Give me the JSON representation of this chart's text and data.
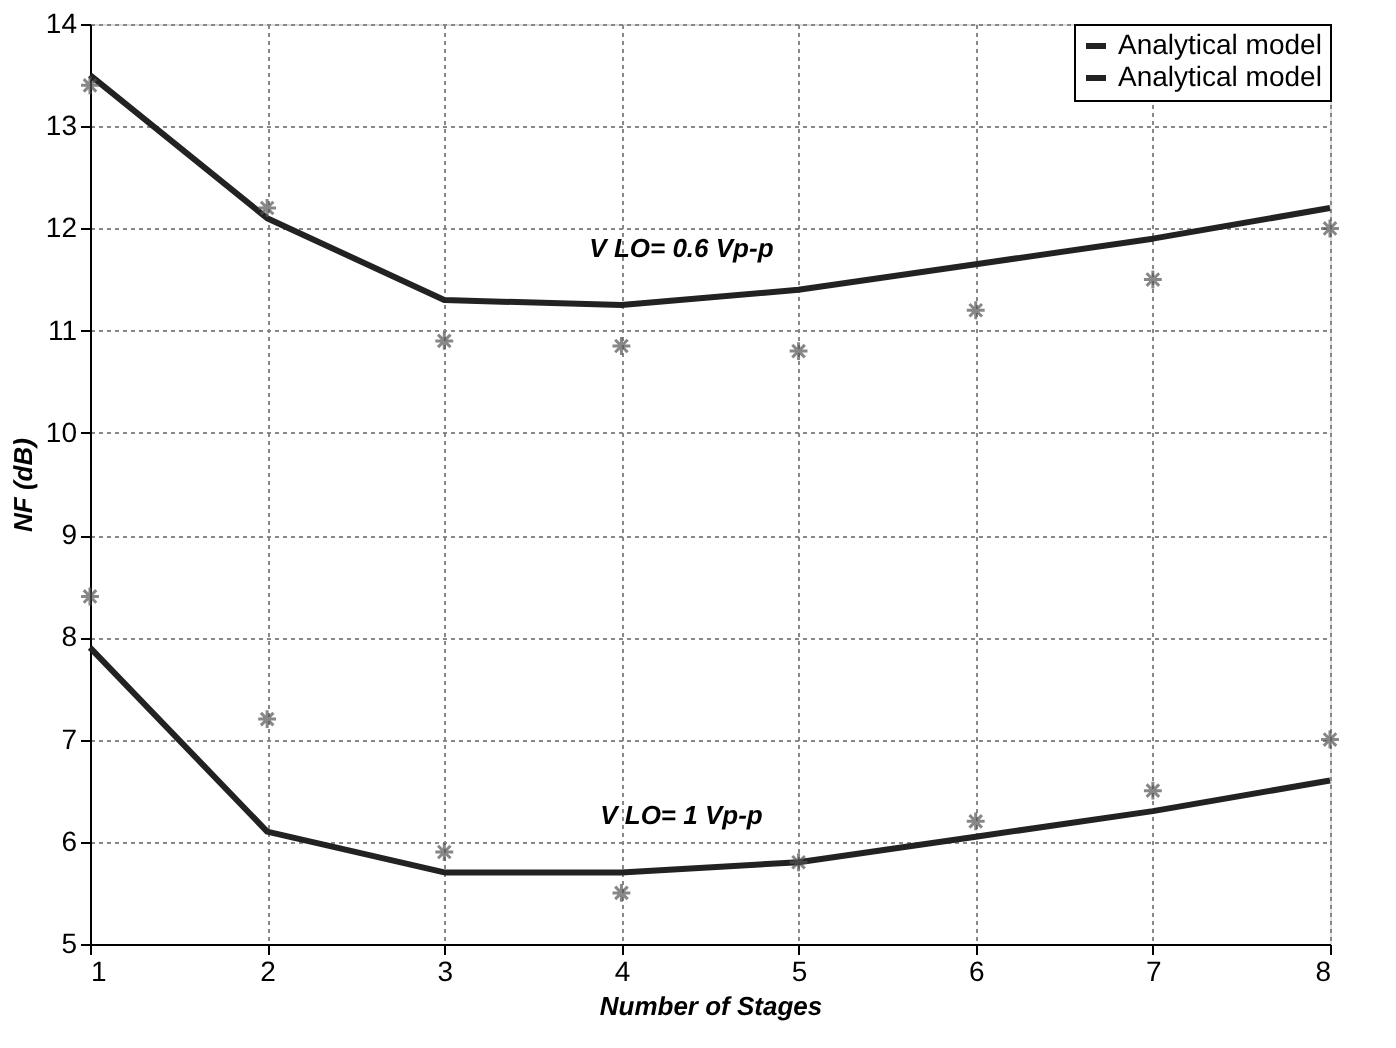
{
  "chart_data": {
    "type": "line",
    "xlabel": "Number of Stages",
    "ylabel": "NF (dB)",
    "x": [
      1,
      2,
      3,
      4,
      5,
      6,
      7,
      8
    ],
    "xlim": [
      1,
      8
    ],
    "xticks": [
      1,
      2,
      3,
      4,
      5,
      6,
      7,
      8
    ],
    "ylim": [
      5,
      14
    ],
    "yticks": [
      5,
      6,
      7,
      8,
      9,
      10,
      11,
      12,
      13,
      14
    ],
    "grid": true,
    "legend": "top right",
    "line_style": "solid",
    "series": [
      {
        "type": "scatter",
        "marker": "cross",
        "color": "#555555",
        "values": [
          13.4,
          12.2,
          10.9,
          10.85,
          10.8,
          11.2,
          11.5,
          12.0
        ]
      },
      {
        "name": "Analytical model",
        "color": "#222222",
        "marker": "none",
        "values": [
          13.5,
          12.1,
          11.3,
          11.25,
          11.4,
          11.65,
          11.9,
          12.2
        ]
      },
      {
        "type": "scatter",
        "marker": "cross",
        "color": "#555555",
        "values": [
          8.4,
          7.2,
          5.9,
          5.5,
          5.8,
          6.2,
          6.5,
          7.0
        ]
      },
      {
        "name": "Analytical model",
        "color": "#222222",
        "marker": "none",
        "values": [
          7.9,
          6.1,
          5.7,
          5.7,
          5.8,
          6.05,
          6.3,
          6.6
        ]
      }
    ],
    "annotations": [
      "V LO= 0.6  Vp-p",
      "V LO= 1 Vp-p"
    ]
  }
}
